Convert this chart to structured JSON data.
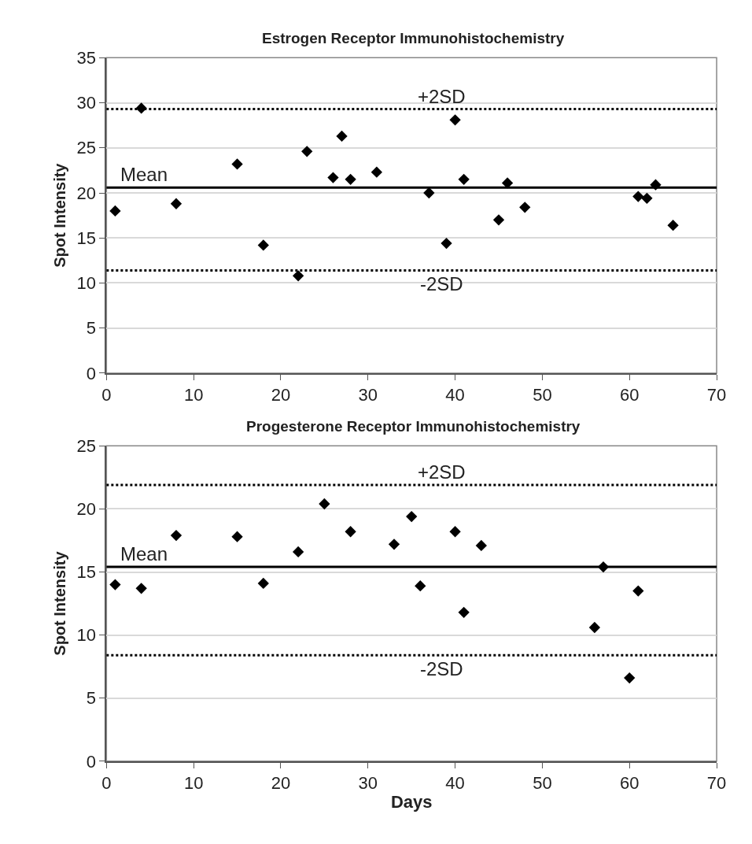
{
  "chart_data": [
    {
      "type": "scatter",
      "title": "Estrogen Receptor Immunohistochemistry",
      "ylabel": "Spot Intensity",
      "x": [
        1,
        4,
        8,
        15,
        18,
        22,
        23,
        26,
        27,
        28,
        31,
        37,
        39,
        40,
        41,
        45,
        46,
        48,
        61,
        62,
        63,
        65
      ],
      "series": [
        {
          "color": "#000000",
          "values": [
            18,
            29.4,
            18.8,
            23.2,
            14.2,
            10.8,
            24.6,
            21.7,
            26.3,
            21.5,
            22.3,
            20,
            14.4,
            28.1,
            21.5,
            17,
            21.1,
            18.4,
            19.6,
            19.4,
            20.9,
            16.4
          ]
        }
      ],
      "xlim": [
        0,
        70
      ],
      "xticks": [
        0,
        10,
        20,
        30,
        40,
        50,
        60,
        70
      ],
      "ylim": [
        0,
        35
      ],
      "yticks": [
        0,
        5,
        10,
        15,
        20,
        25,
        30,
        35
      ],
      "grid": "y",
      "marker": "diamond",
      "ref_lines": [
        {
          "axis": "y",
          "value": 29.3,
          "label": "+2SD",
          "color": "#000000",
          "line_style": "dotted"
        },
        {
          "axis": "y",
          "value": 20.6,
          "label": "Mean",
          "color": "#000000",
          "line_style": "solid"
        },
        {
          "axis": "y",
          "value": 11.4,
          "label": "-2SD",
          "color": "#000000",
          "line_style": "dotted"
        }
      ]
    },
    {
      "type": "scatter",
      "title": "Progesterone Receptor Immunohistochemistry",
      "ylabel": "Spot Intensity",
      "xlabel": "Days",
      "x": [
        1,
        4,
        8,
        15,
        18,
        22,
        25,
        28,
        33,
        35,
        36,
        40,
        41,
        43,
        56,
        57,
        60,
        61
      ],
      "series": [
        {
          "color": "#000000",
          "values": [
            14,
            13.7,
            17.9,
            17.8,
            14.1,
            16.6,
            20.4,
            18.2,
            17.2,
            19.4,
            13.9,
            18.2,
            11.8,
            17.1,
            10.6,
            15.4,
            6.6,
            13.5
          ]
        }
      ],
      "xlim": [
        0,
        70
      ],
      "xticks": [
        0,
        10,
        20,
        30,
        40,
        50,
        60,
        70
      ],
      "ylim": [
        0,
        25
      ],
      "yticks": [
        0,
        5,
        10,
        15,
        20,
        25
      ],
      "grid": "y",
      "marker": "diamond",
      "ref_lines": [
        {
          "axis": "y",
          "value": 21.9,
          "label": "+2SD",
          "color": "#000000",
          "line_style": "dotted"
        },
        {
          "axis": "y",
          "value": 15.4,
          "label": "Mean",
          "color": "#000000",
          "line_style": "solid"
        },
        {
          "axis": "y",
          "value": 8.4,
          "label": "-2SD",
          "color": "#000000",
          "line_style": "dotted"
        }
      ]
    }
  ]
}
